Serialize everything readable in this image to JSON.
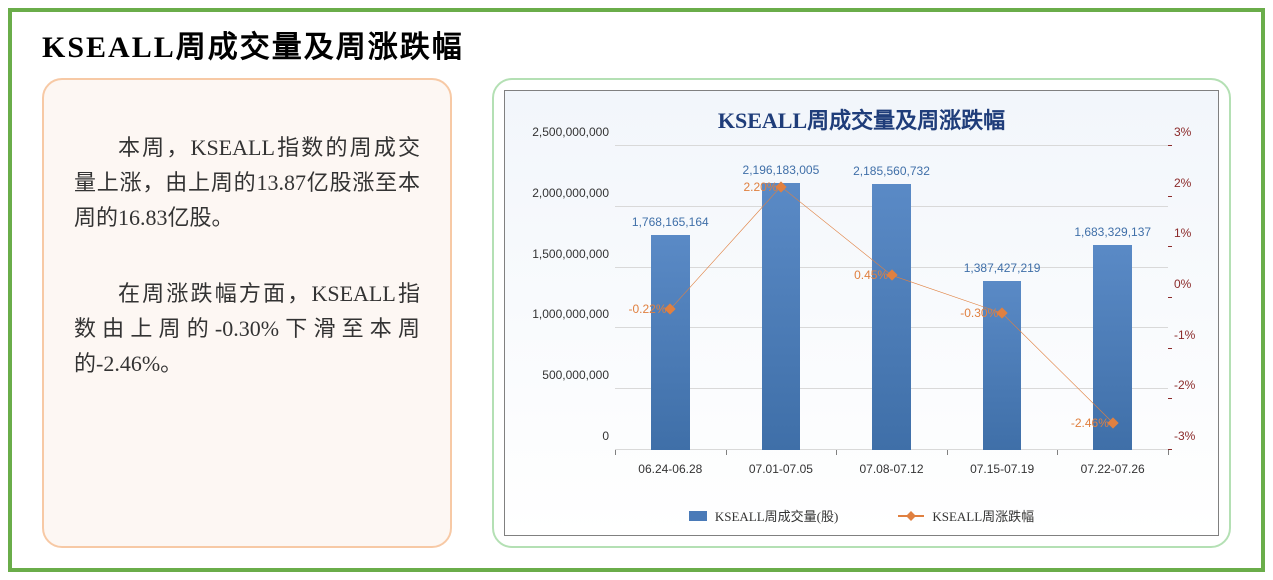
{
  "title": "KSEALL周成交量及周涨跌幅",
  "text_panel": {
    "para1": "本周，KSEALL指数的周成交量上涨，由上周的13.87亿股涨至本周的16.83亿股。",
    "para2": "在周涨跌幅方面，KSEALL指数由上周的-0.30%下滑至本周的-2.46%。"
  },
  "chart": {
    "title": "KSEALL周成交量及周涨跌幅",
    "type": "bar+line",
    "categories": [
      "06.24-06.28",
      "07.01-07.05",
      "07.08-07.12",
      "07.15-07.19",
      "07.22-07.26"
    ],
    "bar_values": [
      1768165164,
      2196183005,
      2185560732,
      1387427219,
      1683329137
    ],
    "bar_labels": [
      "1,768,165,164",
      "2,196,183,005",
      "2,185,560,732",
      "1,387,427,219",
      "1,683,329,137"
    ],
    "line_values": [
      -0.22,
      2.2,
      0.45,
      -0.3,
      -2.46
    ],
    "line_labels": [
      "-0.22%",
      "2.20%",
      "0.45%",
      "-0.30%",
      "-2.46%"
    ],
    "y_left": {
      "min": 0,
      "max": 2500000000,
      "step": 500000000,
      "tick_labels": [
        "0",
        "500,000,000",
        "1,000,000,000",
        "1,500,000,000",
        "2,000,000,000",
        "2,500,000,000"
      ]
    },
    "y_right": {
      "min": -3,
      "max": 3,
      "step": 1,
      "tick_labels": [
        "-3%",
        "-2%",
        "-1%",
        "0%",
        "1%",
        "2%",
        "3%"
      ]
    },
    "colors": {
      "bar": "#4a7ab8",
      "line": "#e08040",
      "grid": "#d9d9d9",
      "chart_bg_top": "#f2f6fb",
      "chart_bg_bottom": "#ffffff",
      "title_color": "#1f3d7a",
      "right_axis_color": "#8b2a2a",
      "border": "#808080"
    },
    "bar_width_ratio": 0.35,
    "legend": {
      "bar_label": "KSEALL周成交量(股)",
      "line_label": "KSEALL周涨跌幅"
    },
    "title_fontsize": 22,
    "axis_fontsize": 12
  },
  "frame": {
    "outer_border_color": "#6aad4a",
    "text_panel_border": "#f7c9a5",
    "text_panel_bg": "#fdf7f3",
    "chart_panel_border": "#b4e0b4"
  }
}
